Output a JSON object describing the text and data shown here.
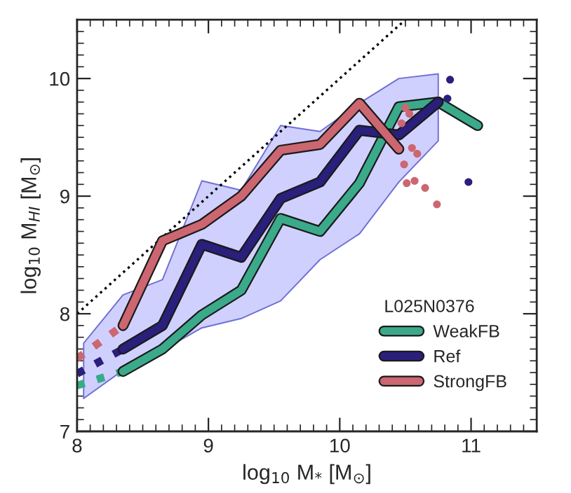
{
  "chart_data": {
    "type": "line",
    "xlabel": "log$_{10}$ M$_{*}$ [M$_{⊙}$]",
    "ylabel": "log$_{10}$ M$_{HI}$ [M$_{⊙}$]",
    "legend_title": "L025N0376",
    "xlim": [
      8,
      11.5
    ],
    "ylim": [
      7,
      10.5
    ],
    "xticks": [
      8,
      9,
      10,
      11
    ],
    "yticks": [
      7,
      8,
      9,
      10
    ],
    "grid": false,
    "legend": "bottom right",
    "series": [
      {
        "color": "#d0d0ff",
        "x": [
          8.05,
          8.35,
          8.65,
          8.95,
          9.25,
          9.55,
          9.85,
          10.15,
          10.45,
          10.75
        ],
        "values": [
          null,
          null,
          null,
          null,
          null,
          null,
          null,
          null,
          null,
          null
        ],
        "upper": [
          7.75,
          8.16,
          8.29,
          9.13,
          9.05,
          9.6,
          9.55,
          9.79,
          10.0,
          10.04
        ],
        "lower": [
          7.28,
          7.52,
          7.69,
          7.88,
          7.96,
          8.11,
          8.46,
          8.68,
          9.12,
          9.47
        ]
      },
      {
        "color": "#000000",
        "line_style": "dotted",
        "x": [
          8,
          10.5
        ],
        "values": [
          8,
          10.5
        ]
      },
      {
        "color": "#3aaa8a",
        "line_style": "dotted",
        "x": [
          8,
          8.35
        ],
        "values": [
          7.39,
          7.51
        ]
      },
      {
        "color": "#2a1f7a",
        "line_style": "dotted",
        "x": [
          8,
          8.35
        ],
        "values": [
          7.49,
          7.7
        ]
      },
      {
        "color": "#cc6670",
        "line_style": "dotted",
        "x": [
          8,
          8.35
        ],
        "values": [
          7.62,
          7.9
        ]
      },
      {
        "name": "WeakFB",
        "color": "#3aaa8a",
        "line_style": "solid",
        "x": [
          8.35,
          8.65,
          8.95,
          9.25,
          9.55,
          9.85,
          10.15,
          10.45,
          10.75,
          11.05
        ],
        "values": [
          7.51,
          7.7,
          7.99,
          8.2,
          8.81,
          8.7,
          9.11,
          9.76,
          9.8,
          9.6
        ]
      },
      {
        "name": "Ref",
        "color": "#2a1f7a",
        "line_style": "solid",
        "x": [
          8.35,
          8.65,
          8.95,
          9.25,
          9.55,
          9.85,
          10.15,
          10.45,
          10.75
        ],
        "values": [
          7.7,
          7.9,
          8.59,
          8.48,
          8.98,
          9.12,
          9.56,
          9.52,
          9.8
        ]
      },
      {
        "name": "StrongFB",
        "color": "#cc6670",
        "line_style": "solid",
        "x": [
          8.35,
          8.65,
          8.95,
          9.25,
          9.55,
          9.85,
          10.15,
          10.45
        ],
        "values": [
          7.9,
          8.62,
          8.76,
          9.0,
          9.39,
          9.44,
          9.79,
          9.4
        ]
      },
      {
        "type": "scatter",
        "color": "#cc6670",
        "marker": "circle",
        "x": [
          10.5,
          10.53,
          10.47,
          10.55,
          10.59,
          10.49,
          10.51,
          10.57,
          10.65,
          10.74
        ],
        "values": [
          9.75,
          9.7,
          9.62,
          9.41,
          9.36,
          9.27,
          9.11,
          9.13,
          9.07,
          8.93
        ]
      },
      {
        "type": "scatter",
        "color": "#2a1f7a",
        "marker": "circle",
        "x": [
          10.84,
          10.82,
          10.98
        ],
        "values": [
          9.99,
          9.83,
          9.12
        ]
      }
    ]
  }
}
